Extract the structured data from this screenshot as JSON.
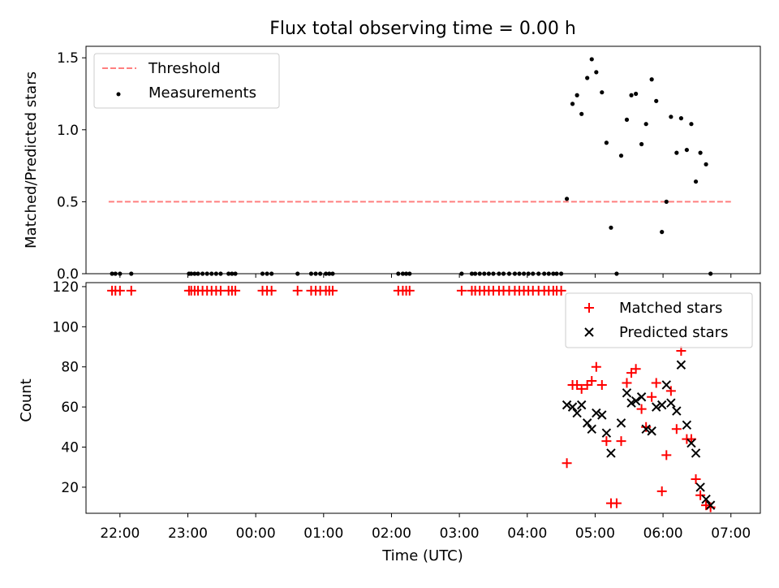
{
  "figure": {
    "title": "Flux total observing time = 0.00 h"
  },
  "chart_data": [
    {
      "type": "scatter",
      "panel": "top",
      "title": "Flux total observing time = 0.00 h",
      "xlabel": "",
      "ylabel": "Matched/Predicted stars",
      "xlim": [
        "21:30",
        "07:26"
      ],
      "ylim": [
        0,
        1.58
      ],
      "yticks": [
        0.0,
        0.5,
        1.0,
        1.5
      ],
      "ytick_labels": [
        "0.0",
        "0.5",
        "1.0",
        "1.5"
      ],
      "legend": {
        "placement": "top-left",
        "entries": [
          "Threshold",
          "Measurements"
        ]
      },
      "colors": {
        "threshold": "#ff7f7f",
        "measurements": "#000000"
      },
      "series": [
        {
          "name": "Threshold",
          "kind": "dashed-line",
          "x": [
            "21:50",
            "07:00"
          ],
          "y": [
            0.5,
            0.5
          ]
        },
        {
          "name": "Measurements",
          "kind": "scatter",
          "points": [
            [
              "21:53",
              0
            ],
            [
              "21:56",
              0
            ],
            [
              "22:00",
              0
            ],
            [
              "22:10",
              0
            ],
            [
              "23:01",
              0
            ],
            [
              "23:03",
              0
            ],
            [
              "23:06",
              0
            ],
            [
              "23:09",
              0
            ],
            [
              "23:13",
              0
            ],
            [
              "23:17",
              0
            ],
            [
              "23:21",
              0
            ],
            [
              "23:25",
              0
            ],
            [
              "23:29",
              0
            ],
            [
              "23:36",
              0
            ],
            [
              "23:39",
              0
            ],
            [
              "23:42",
              0
            ],
            [
              "00:06",
              0
            ],
            [
              "00:10",
              0
            ],
            [
              "00:14",
              0
            ],
            [
              "00:37",
              0
            ],
            [
              "00:49",
              0
            ],
            [
              "00:53",
              0
            ],
            [
              "00:57",
              0
            ],
            [
              "01:02",
              0
            ],
            [
              "01:05",
              0
            ],
            [
              "01:08",
              0
            ],
            [
              "02:06",
              0
            ],
            [
              "02:10",
              0
            ],
            [
              "02:13",
              0
            ],
            [
              "02:16",
              0
            ],
            [
              "03:02",
              0
            ],
            [
              "03:11",
              0
            ],
            [
              "03:14",
              0
            ],
            [
              "03:18",
              0
            ],
            [
              "03:22",
              0
            ],
            [
              "03:26",
              0
            ],
            [
              "03:30",
              0
            ],
            [
              "03:35",
              0
            ],
            [
              "03:39",
              0
            ],
            [
              "03:44",
              0
            ],
            [
              "03:49",
              0
            ],
            [
              "03:53",
              0
            ],
            [
              "03:57",
              0
            ],
            [
              "04:01",
              0
            ],
            [
              "04:05",
              0
            ],
            [
              "04:10",
              0
            ],
            [
              "04:15",
              0
            ],
            [
              "04:19",
              0
            ],
            [
              "04:23",
              0
            ],
            [
              "04:26",
              0
            ],
            [
              "04:30",
              0
            ],
            [
              "04:35",
              0.52
            ],
            [
              "04:40",
              1.18
            ],
            [
              "04:44",
              1.24
            ],
            [
              "04:48",
              1.11
            ],
            [
              "04:53",
              1.36
            ],
            [
              "04:57",
              1.49
            ],
            [
              "05:01",
              1.4
            ],
            [
              "05:06",
              1.26
            ],
            [
              "05:10",
              0.91
            ],
            [
              "05:14",
              0.32
            ],
            [
              "05:19",
              0.0
            ],
            [
              "05:23",
              0.82
            ],
            [
              "05:28",
              1.07
            ],
            [
              "05:32",
              1.24
            ],
            [
              "05:36",
              1.25
            ],
            [
              "05:41",
              0.9
            ],
            [
              "05:45",
              1.04
            ],
            [
              "05:50",
              1.35
            ],
            [
              "05:54",
              1.2
            ],
            [
              "05:59",
              0.29
            ],
            [
              "06:03",
              0.5
            ],
            [
              "06:07",
              1.09
            ],
            [
              "06:12",
              0.84
            ],
            [
              "06:16",
              1.08
            ],
            [
              "06:21",
              0.86
            ],
            [
              "06:25",
              1.04
            ],
            [
              "06:29",
              0.64
            ],
            [
              "06:33",
              0.84
            ],
            [
              "06:38",
              0.76
            ],
            [
              "06:42",
              0.0
            ]
          ]
        }
      ]
    },
    {
      "type": "scatter",
      "panel": "bottom",
      "title": "",
      "xlabel": "Time (UTC)",
      "ylabel": "Count",
      "xlim": [
        "21:30",
        "07:26"
      ],
      "ylim": [
        7,
        122
      ],
      "xtick_labels": [
        "22:00",
        "23:00",
        "00:00",
        "01:00",
        "02:00",
        "03:00",
        "04:00",
        "05:00",
        "06:00",
        "07:00"
      ],
      "yticks": [
        20,
        40,
        60,
        80,
        100,
        120
      ],
      "ytick_labels": [
        "20",
        "40",
        "60",
        "80",
        "100",
        "120"
      ],
      "legend": {
        "placement": "top-right",
        "entries": [
          "Matched stars",
          "Predicted stars"
        ]
      },
      "colors": {
        "matched": "#ff0000",
        "predicted": "#000000"
      },
      "series": [
        {
          "name": "Matched stars",
          "marker": "+",
          "points": [
            [
              "21:53",
              118
            ],
            [
              "21:56",
              118
            ],
            [
              "22:00",
              118
            ],
            [
              "22:10",
              118
            ],
            [
              "23:01",
              118
            ],
            [
              "23:03",
              118
            ],
            [
              "23:06",
              118
            ],
            [
              "23:09",
              118
            ],
            [
              "23:13",
              118
            ],
            [
              "23:17",
              118
            ],
            [
              "23:21",
              118
            ],
            [
              "23:25",
              118
            ],
            [
              "23:29",
              118
            ],
            [
              "23:36",
              118
            ],
            [
              "23:39",
              118
            ],
            [
              "23:42",
              118
            ],
            [
              "00:06",
              118
            ],
            [
              "00:10",
              118
            ],
            [
              "00:14",
              118
            ],
            [
              "00:37",
              118
            ],
            [
              "00:49",
              118
            ],
            [
              "00:53",
              118
            ],
            [
              "00:57",
              118
            ],
            [
              "01:02",
              118
            ],
            [
              "01:05",
              118
            ],
            [
              "01:08",
              118
            ],
            [
              "02:06",
              118
            ],
            [
              "02:10",
              118
            ],
            [
              "02:13",
              118
            ],
            [
              "02:16",
              118
            ],
            [
              "03:02",
              118
            ],
            [
              "03:11",
              118
            ],
            [
              "03:14",
              118
            ],
            [
              "03:18",
              118
            ],
            [
              "03:22",
              118
            ],
            [
              "03:26",
              118
            ],
            [
              "03:30",
              118
            ],
            [
              "03:35",
              118
            ],
            [
              "03:39",
              118
            ],
            [
              "03:44",
              118
            ],
            [
              "03:49",
              118
            ],
            [
              "03:53",
              118
            ],
            [
              "03:57",
              118
            ],
            [
              "04:01",
              118
            ],
            [
              "04:05",
              118
            ],
            [
              "04:10",
              118
            ],
            [
              "04:15",
              118
            ],
            [
              "04:19",
              118
            ],
            [
              "04:23",
              118
            ],
            [
              "04:26",
              118
            ],
            [
              "04:30",
              118
            ],
            [
              "04:35",
              32
            ],
            [
              "04:40",
              71
            ],
            [
              "04:44",
              71
            ],
            [
              "04:48",
              69
            ],
            [
              "04:53",
              71
            ],
            [
              "04:57",
              73
            ],
            [
              "05:01",
              80
            ],
            [
              "05:06",
              71
            ],
            [
              "05:10",
              43
            ],
            [
              "05:14",
              12
            ],
            [
              "05:19",
              12
            ],
            [
              "05:23",
              43
            ],
            [
              "05:28",
              72
            ],
            [
              "05:32",
              77
            ],
            [
              "05:36",
              79
            ],
            [
              "05:41",
              59
            ],
            [
              "05:45",
              50
            ],
            [
              "05:50",
              65
            ],
            [
              "05:54",
              72
            ],
            [
              "05:59",
              18
            ],
            [
              "06:03",
              36
            ],
            [
              "06:07",
              68
            ],
            [
              "06:12",
              49
            ],
            [
              "06:16",
              88
            ],
            [
              "06:21",
              44
            ],
            [
              "06:25",
              44
            ],
            [
              "06:29",
              24
            ],
            [
              "06:33",
              16
            ],
            [
              "06:38",
              11
            ],
            [
              "06:42",
              10
            ]
          ]
        },
        {
          "name": "Predicted stars",
          "marker": "x",
          "points": [
            [
              "04:35",
              61
            ],
            [
              "04:40",
              60
            ],
            [
              "04:44",
              57
            ],
            [
              "04:48",
              61
            ],
            [
              "04:53",
              52
            ],
            [
              "04:57",
              49
            ],
            [
              "05:01",
              57
            ],
            [
              "05:06",
              56
            ],
            [
              "05:10",
              47
            ],
            [
              "05:14",
              37
            ],
            [
              "05:23",
              52
            ],
            [
              "05:28",
              67
            ],
            [
              "05:32",
              62
            ],
            [
              "05:36",
              63
            ],
            [
              "05:41",
              65
            ],
            [
              "05:45",
              49
            ],
            [
              "05:50",
              48
            ],
            [
              "05:54",
              60
            ],
            [
              "05:59",
              61
            ],
            [
              "06:03",
              71
            ],
            [
              "06:07",
              62
            ],
            [
              "06:12",
              58
            ],
            [
              "06:16",
              81
            ],
            [
              "06:21",
              51
            ],
            [
              "06:25",
              42
            ],
            [
              "06:29",
              37
            ],
            [
              "06:33",
              20
            ],
            [
              "06:38",
              14
            ],
            [
              "06:42",
              11
            ]
          ]
        }
      ]
    }
  ]
}
